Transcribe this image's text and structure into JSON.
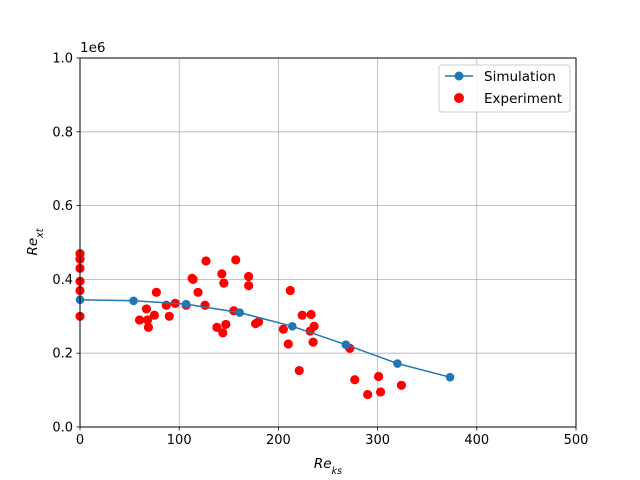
{
  "chart_data": {
    "type": "scatter",
    "title": "",
    "xlabel": "Re",
    "xlabel_sub": "ks",
    "ylabel": "Re",
    "ylabel_sub": "xt",
    "y_multiplier_label": "1e6",
    "xlim": [
      0,
      500
    ],
    "ylim": [
      0,
      1.0
    ],
    "xticks": [
      0,
      100,
      200,
      300,
      400,
      500
    ],
    "xtick_labels": [
      "0",
      "100",
      "200",
      "300",
      "400",
      "500"
    ],
    "yticks": [
      0.0,
      0.2,
      0.4,
      0.6,
      0.8,
      1.0
    ],
    "ytick_labels": [
      "0.0",
      "0.2",
      "0.4",
      "0.6",
      "0.8",
      "1.0"
    ],
    "grid": true,
    "legend_position": "top-right",
    "series": [
      {
        "name": "Simulation",
        "kind": "line-marker",
        "color": "#1f77b4",
        "points": [
          [
            0,
            0.345
          ],
          [
            54,
            0.342
          ],
          [
            107,
            0.333
          ],
          [
            161,
            0.31
          ],
          [
            214,
            0.273
          ],
          [
            268,
            0.223
          ],
          [
            320,
            0.172
          ],
          [
            373,
            0.135
          ]
        ]
      },
      {
        "name": "Experiment",
        "kind": "scatter",
        "color": "#ff0000",
        "points": [
          [
            0,
            0.47
          ],
          [
            0,
            0.455
          ],
          [
            0,
            0.43
          ],
          [
            0,
            0.395
          ],
          [
            0,
            0.37
          ],
          [
            0,
            0.3
          ],
          [
            60,
            0.29
          ],
          [
            67,
            0.32
          ],
          [
            68,
            0.29
          ],
          [
            69,
            0.27
          ],
          [
            75,
            0.303
          ],
          [
            77,
            0.365
          ],
          [
            87,
            0.33
          ],
          [
            90,
            0.3
          ],
          [
            96,
            0.335
          ],
          [
            107,
            0.33
          ],
          [
            113,
            0.403
          ],
          [
            114,
            0.4
          ],
          [
            119,
            0.365
          ],
          [
            126,
            0.33
          ],
          [
            127,
            0.45
          ],
          [
            138,
            0.27
          ],
          [
            143,
            0.415
          ],
          [
            144,
            0.255
          ],
          [
            145,
            0.39
          ],
          [
            147,
            0.278
          ],
          [
            155,
            0.315
          ],
          [
            157,
            0.453
          ],
          [
            170,
            0.408
          ],
          [
            170,
            0.383
          ],
          [
            177,
            0.28
          ],
          [
            180,
            0.285
          ],
          [
            205,
            0.265
          ],
          [
            210,
            0.225
          ],
          [
            212,
            0.37
          ],
          [
            221,
            0.153
          ],
          [
            224,
            0.303
          ],
          [
            232,
            0.26
          ],
          [
            233,
            0.305
          ],
          [
            235,
            0.23
          ],
          [
            236,
            0.273
          ],
          [
            272,
            0.213
          ],
          [
            277,
            0.128
          ],
          [
            290,
            0.088
          ],
          [
            301,
            0.137
          ],
          [
            303,
            0.095
          ],
          [
            324,
            0.113
          ]
        ]
      }
    ]
  }
}
